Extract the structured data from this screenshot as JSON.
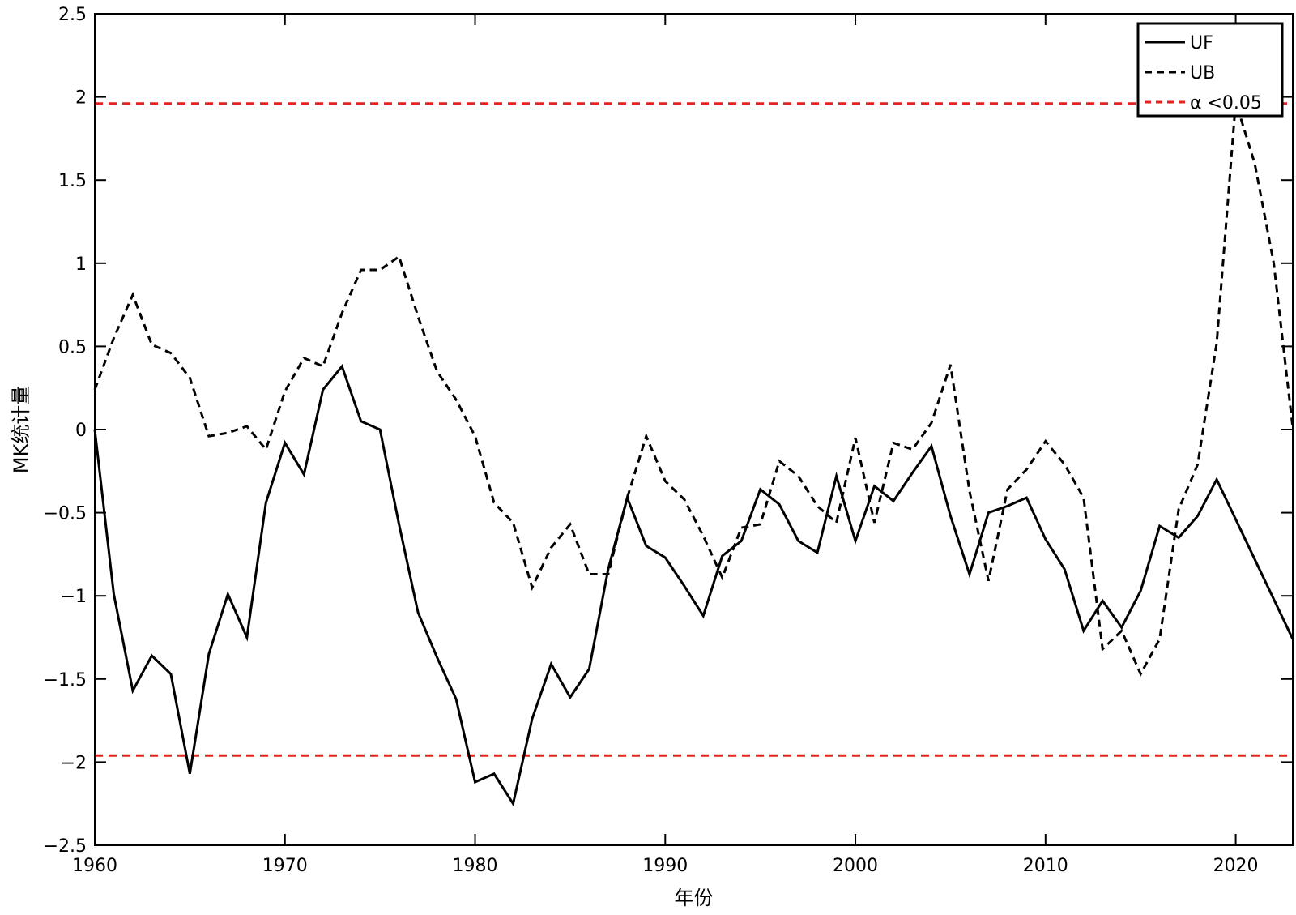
{
  "chart_data": {
    "type": "line",
    "title": "",
    "xlabel": "年份",
    "ylabel": "MK统计量",
    "xlim": [
      1960,
      2023
    ],
    "ylim": [
      -2.5,
      2.5
    ],
    "xticks": [
      1960,
      1970,
      1980,
      1990,
      2000,
      2010,
      2020
    ],
    "yticks": [
      -2.5,
      -2,
      -1.5,
      -1,
      -0.5,
      0,
      0.5,
      1,
      1.5,
      2,
      2.5
    ],
    "ytick_labels": [
      "−2.5",
      "−2",
      "−1.5",
      "−1",
      "−0.5",
      "0",
      "0.5",
      "1",
      "1.5",
      "2",
      "2.5"
    ],
    "grid": false,
    "legend_position": "top-right",
    "x": [
      1960,
      1961,
      1962,
      1963,
      1964,
      1965,
      1966,
      1967,
      1968,
      1969,
      1970,
      1971,
      1972,
      1973,
      1974,
      1975,
      1976,
      1977,
      1978,
      1979,
      1980,
      1981,
      1982,
      1983,
      1984,
      1985,
      1986,
      1987,
      1988,
      1989,
      1990,
      1991,
      1992,
      1993,
      1994,
      1995,
      1996,
      1997,
      1998,
      1999,
      2000,
      2001,
      2002,
      2003,
      2004,
      2005,
      2006,
      2007,
      2008,
      2009,
      2010,
      2011,
      2012,
      2013,
      2014,
      2015,
      2016,
      2017,
      2018,
      2019,
      2020,
      2021,
      2022,
      2023
    ],
    "series": [
      {
        "name": "UF",
        "color": "#000000",
        "dash": "solid",
        "values": [
          0,
          -0.99,
          -1.57,
          -1.36,
          -1.47,
          -2.07,
          -1.35,
          -0.99,
          -1.25,
          -0.44,
          -0.08,
          -0.27,
          0.24,
          0.38,
          0.05,
          0,
          -0.57,
          -1.1,
          -1.37,
          -1.62,
          -2.12,
          -2.07,
          -2.25,
          -1.74,
          -1.41,
          -1.61,
          -1.44,
          -0.84,
          -0.41,
          -0.7,
          -0.77,
          -0.94,
          -1.12,
          -0.76,
          -0.67,
          -0.36,
          -0.45,
          -0.67,
          -0.74,
          -0.28,
          -0.67,
          -0.34,
          -0.43,
          -0.26,
          -0.1,
          -0.52,
          -0.87,
          -0.5,
          -0.46,
          -0.41,
          -0.66,
          -0.84,
          -1.21,
          -1.03,
          -1.19,
          -0.97,
          -0.58,
          -0.65,
          -0.52,
          -0.3,
          -0.54,
          -0.78,
          -1.02,
          -1.26
        ]
      },
      {
        "name": "UB",
        "color": "#000000",
        "dash": "dashed",
        "values": [
          0.24,
          0.55,
          0.81,
          0.51,
          0.46,
          0.31,
          -0.04,
          -0.02,
          0.02,
          -0.12,
          0.23,
          0.43,
          0.38,
          0.7,
          0.96,
          0.96,
          1.04,
          0.68,
          0.35,
          0.18,
          -0.04,
          -0.44,
          -0.56,
          -0.95,
          -0.71,
          -0.57,
          -0.87,
          -0.87,
          -0.41,
          -0.04,
          -0.31,
          -0.42,
          -0.64,
          -0.89,
          -0.59,
          -0.57,
          -0.19,
          -0.28,
          -0.46,
          -0.56,
          -0.05,
          -0.56,
          -0.08,
          -0.12,
          0.04,
          0.39,
          -0.37,
          -0.91,
          -0.36,
          -0.24,
          -0.07,
          -0.21,
          -0.41,
          -1.32,
          -1.21,
          -1.47,
          -1.26,
          -0.48,
          -0.21,
          0.52,
          1.97,
          1.6,
          1,
          0.01
        ]
      }
    ],
    "reference_lines": [
      {
        "name": "α <0.05",
        "values": [
          1.96,
          -1.96
        ],
        "color": "#e52222",
        "dash": "dashed"
      }
    ]
  }
}
